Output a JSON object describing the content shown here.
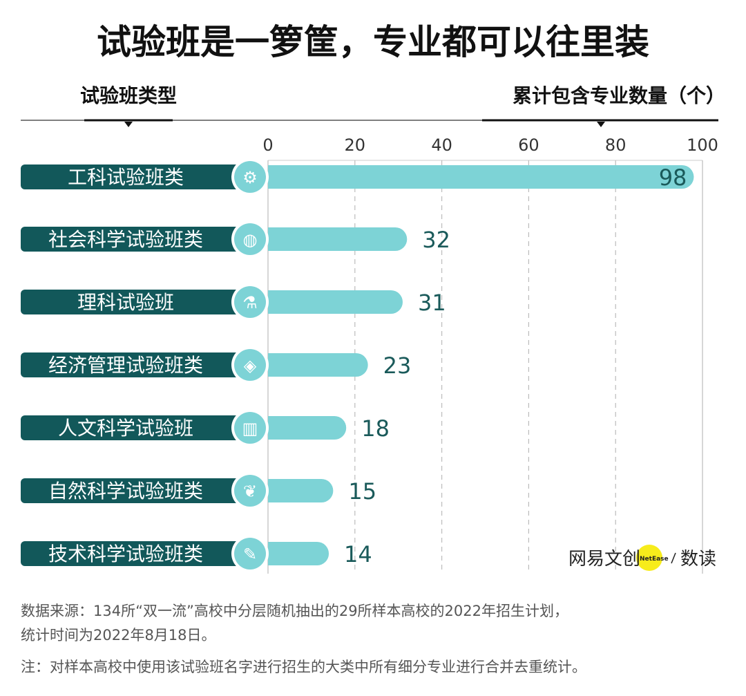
{
  "title": "试验班是一箩筐，专业都可以往里装",
  "left_header": "试验班类型",
  "right_header": "累计包含专业数量（个）",
  "colors": {
    "label_bg": "#12585a",
    "bar": "#7dd3d6",
    "value_text": "#1a5a5a",
    "logo_dot": "#f7ec1b"
  },
  "chart_data": {
    "type": "bar",
    "orientation": "horizontal",
    "categories": [
      "工科试验班类",
      "社会科学试验班类",
      "理科试验班",
      "经济管理试验班类",
      "人文科学试验班",
      "自然科学试验班类",
      "技术科学试验班类"
    ],
    "icons": [
      "gear-icon",
      "globe-icon",
      "flask-icon",
      "diamond-icon",
      "book-icon",
      "leaf-icon",
      "wrench-icon"
    ],
    "values": [
      98,
      32,
      31,
      23,
      18,
      15,
      14
    ],
    "xlim": [
      0,
      100
    ],
    "xticks": [
      0,
      20,
      40,
      60,
      80,
      100
    ],
    "grid": true,
    "xlabel": "累计包含专业数量（个）",
    "ylabel": "试验班类型"
  },
  "logo": {
    "brand": "网易文创",
    "sub": "NetEase",
    "product": "数读"
  },
  "notes": [
    "数据来源：134所“双一流”高校中分层随机抽出的29所样本高校的2022年招生计划，",
    "统计时间为2022年8月18日。",
    "注：对样本高校中使用该试验班名字进行招生的大类中所有细分专业进行合并去重统计。"
  ]
}
